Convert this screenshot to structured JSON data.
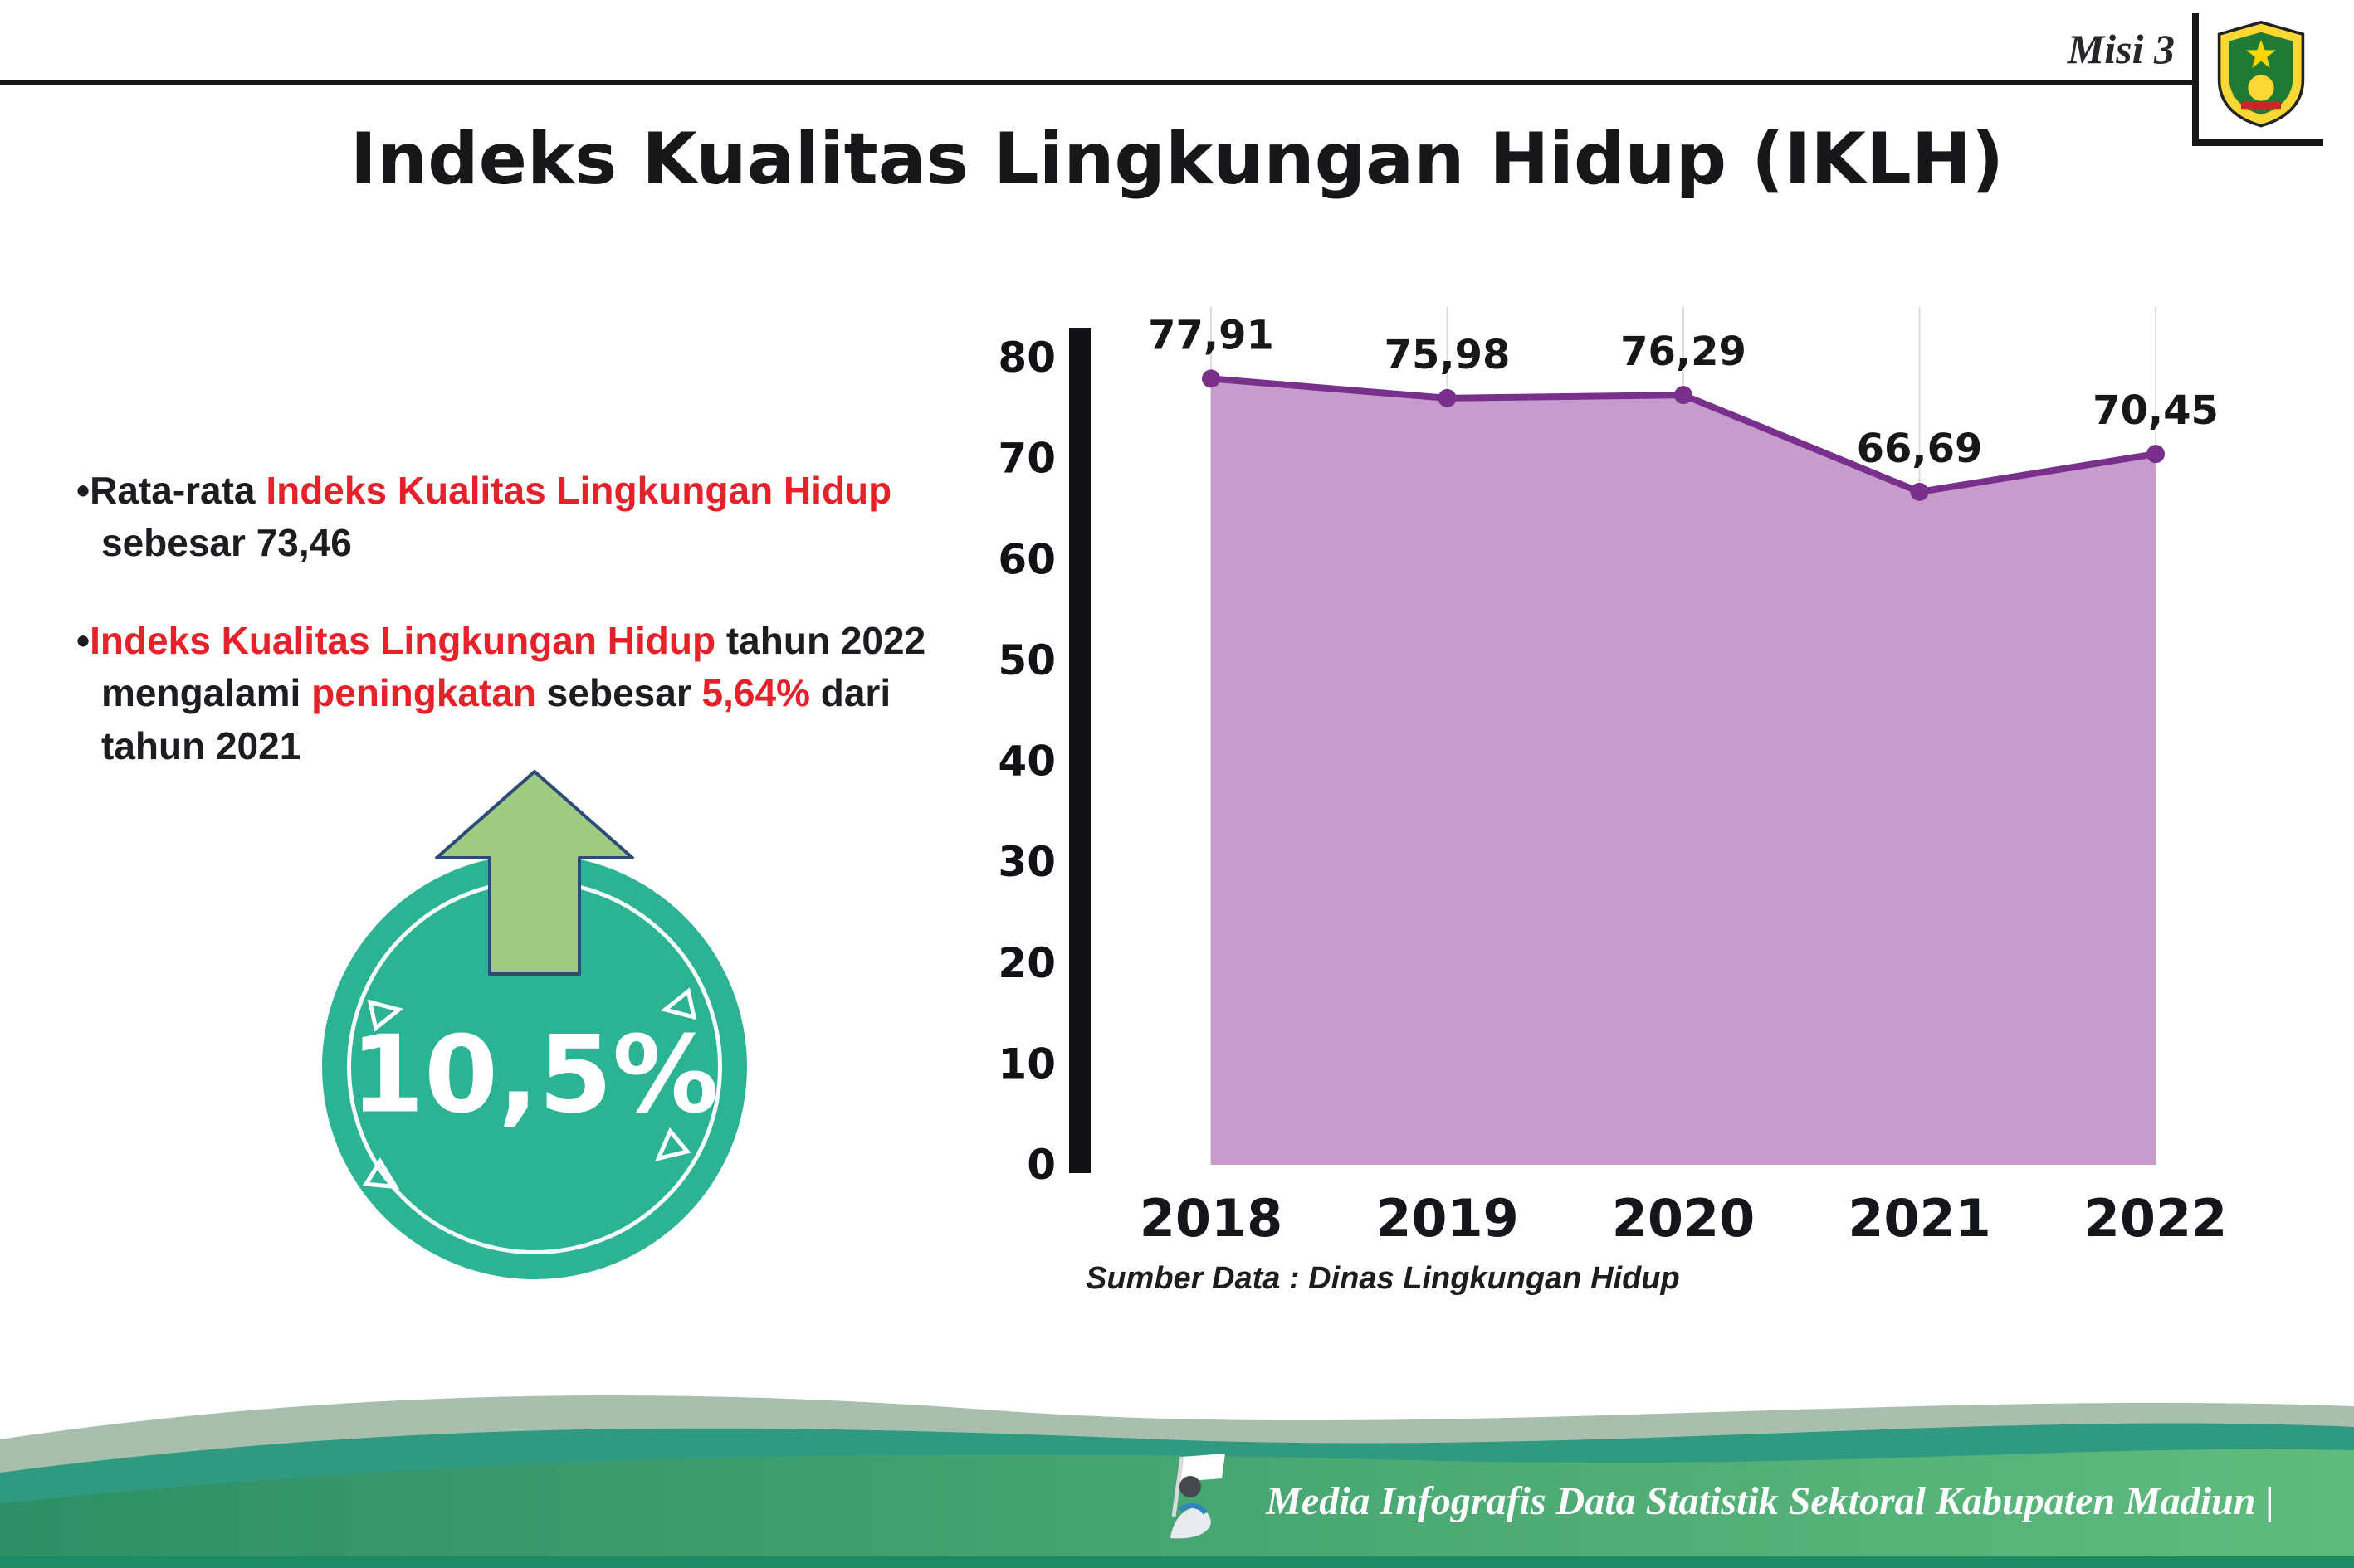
{
  "header": {
    "misi_label": "Misi 3",
    "title": "Indeks Kualitas Lingkungan Hidup (IKLH)"
  },
  "icons": {
    "logo": "kabupaten-madiun-crest",
    "mascot": "infographic-mascot-with-flag",
    "arrow": "increase-up-arrow"
  },
  "colors": {
    "accent_red": "#e62129",
    "badge_teal": "#2bb394",
    "arrow_green": "#9fcb80",
    "footer_green": "#4fae6f",
    "footer_teal": "#2f9a80"
  },
  "bullets": [
    {
      "segments": [
        {
          "text": "Rata-rata ",
          "style": "normal"
        },
        {
          "text": "Indeks Kualitas Lingkungan Hidup",
          "style": "red"
        },
        {
          "text": " sebesar 73,46",
          "style": "normal"
        }
      ]
    },
    {
      "segments": [
        {
          "text": "Indeks Kualitas Lingkungan Hidup",
          "style": "red"
        },
        {
          "text": " tahun 2022 mengalami ",
          "style": "normal"
        },
        {
          "text": "peningkatan",
          "style": "red"
        },
        {
          "text": " sebesar ",
          "style": "normal"
        },
        {
          "text": "5,64%",
          "style": "red"
        },
        {
          "text": " dari tahun 2021",
          "style": "normal"
        }
      ]
    }
  ],
  "badge": {
    "value": "10,5%"
  },
  "chart_data": {
    "type": "area",
    "title": "",
    "categories": [
      "2018",
      "2019",
      "2020",
      "2021",
      "2022"
    ],
    "values": [
      77.91,
      75.98,
      76.29,
      66.69,
      70.45
    ],
    "value_labels": [
      "77,91",
      "75,98",
      "76,29",
      "66,69",
      "70,45"
    ],
    "ylim": [
      0,
      80
    ],
    "yticks": [
      0,
      10,
      20,
      30,
      40,
      50,
      60,
      70,
      80
    ],
    "grid": "vertical",
    "legend": "none",
    "line_color": "#792f8c",
    "fill_color": "#c79ccd",
    "source_note": "Sumber Data : Dinas Lingkungan Hidup"
  },
  "footer": {
    "credit": "Media Infografis Data Statistik Sektoral Kabupaten Madiun |"
  }
}
